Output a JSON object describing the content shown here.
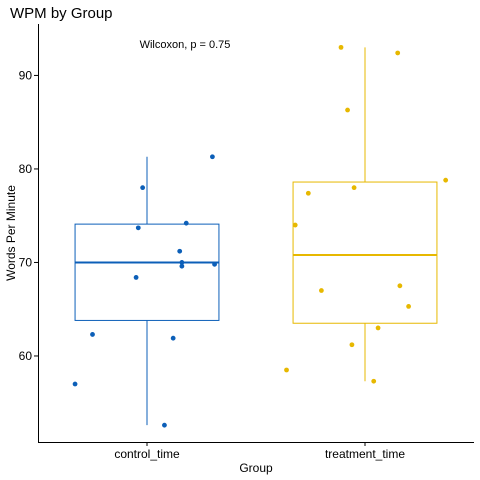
{
  "chart_data": {
    "type": "box",
    "title": "WPM by Group",
    "xlabel": "Group",
    "ylabel": "Words Per Minute",
    "ylim": [
      50.8,
      95.5
    ],
    "yticks": [
      60,
      70,
      80,
      90
    ],
    "categories": [
      "control_time",
      "treatment_time"
    ],
    "annotation": "Wilcoxon, p = 0.75",
    "grid": false,
    "legend": "none",
    "colors": {
      "control_time": "#0c5fb8",
      "treatment_time": "#e7b800"
    },
    "boxes": [
      {
        "name": "control_time",
        "q1": 63.8,
        "median": 70.0,
        "q3": 74.1,
        "whisker_low": 52.6,
        "whisker_high": 81.3
      },
      {
        "name": "treatment_time",
        "q1": 63.5,
        "median": 70.8,
        "q3": 78.6,
        "whisker_low": 57.3,
        "whisker_high": 93.0
      }
    ],
    "points": [
      {
        "group": "control_time",
        "jitter": -0.33,
        "y": 57.0
      },
      {
        "group": "control_time",
        "jitter": -0.25,
        "y": 62.3
      },
      {
        "group": "control_time",
        "jitter": -0.05,
        "y": 68.4
      },
      {
        "group": "control_time",
        "jitter": -0.04,
        "y": 73.7
      },
      {
        "group": "control_time",
        "jitter": -0.02,
        "y": 78.0
      },
      {
        "group": "control_time",
        "jitter": 0.08,
        "y": 52.6
      },
      {
        "group": "control_time",
        "jitter": 0.12,
        "y": 61.9
      },
      {
        "group": "control_time",
        "jitter": 0.16,
        "y": 69.6
      },
      {
        "group": "control_time",
        "jitter": 0.16,
        "y": 70.0
      },
      {
        "group": "control_time",
        "jitter": 0.15,
        "y": 71.2
      },
      {
        "group": "control_time",
        "jitter": 0.18,
        "y": 74.2
      },
      {
        "group": "control_time",
        "jitter": 0.3,
        "y": 81.3
      },
      {
        "group": "control_time",
        "jitter": 0.31,
        "y": 69.8
      },
      {
        "group": "treatment_time",
        "jitter": -0.36,
        "y": 58.5
      },
      {
        "group": "treatment_time",
        "jitter": -0.32,
        "y": 74.0
      },
      {
        "group": "treatment_time",
        "jitter": -0.26,
        "y": 77.4
      },
      {
        "group": "treatment_time",
        "jitter": -0.2,
        "y": 67.0
      },
      {
        "group": "treatment_time",
        "jitter": -0.11,
        "y": 93.0
      },
      {
        "group": "treatment_time",
        "jitter": -0.08,
        "y": 86.3
      },
      {
        "group": "treatment_time",
        "jitter": -0.06,
        "y": 61.2
      },
      {
        "group": "treatment_time",
        "jitter": -0.05,
        "y": 78.0
      },
      {
        "group": "treatment_time",
        "jitter": 0.04,
        "y": 57.3
      },
      {
        "group": "treatment_time",
        "jitter": 0.06,
        "y": 63.0
      },
      {
        "group": "treatment_time",
        "jitter": 0.15,
        "y": 92.4
      },
      {
        "group": "treatment_time",
        "jitter": 0.16,
        "y": 67.5
      },
      {
        "group": "treatment_time",
        "jitter": 0.2,
        "y": 65.3
      },
      {
        "group": "treatment_time",
        "jitter": 0.37,
        "y": 78.8
      }
    ]
  }
}
